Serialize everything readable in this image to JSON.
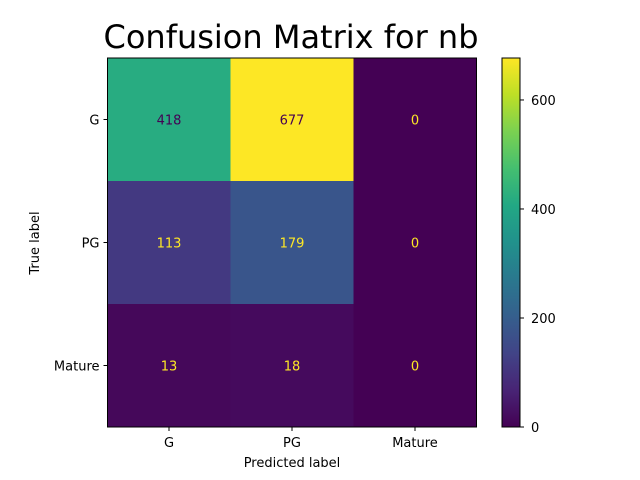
{
  "chart_data": {
    "type": "heatmap",
    "title": "Confusion Matrix for nb",
    "xlabel": "Predicted label",
    "ylabel": "True label",
    "x_categories": [
      "G",
      "PG",
      "Mature"
    ],
    "y_categories": [
      "G",
      "PG",
      "Mature"
    ],
    "values": [
      [
        418,
        677,
        0
      ],
      [
        113,
        179,
        0
      ],
      [
        13,
        18,
        0
      ]
    ],
    "colormap": "viridis",
    "color_range": [
      0,
      677
    ],
    "colorbar_ticks": [
      0,
      200,
      400,
      600
    ],
    "colorbar_tick_labels": [
      "0",
      "200",
      "400",
      "600"
    ],
    "text_colors": {
      "light_bg": "#440154",
      "dark_bg": "#fde725"
    }
  }
}
